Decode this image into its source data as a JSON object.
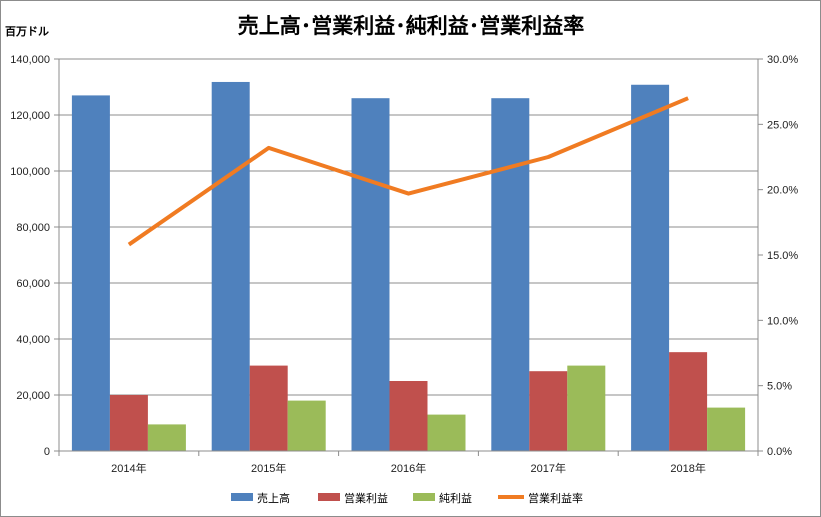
{
  "chart_data": {
    "type": "bar",
    "title": "売上高･営業利益･純利益･営業利益率",
    "ylabel": "百万ドル",
    "categories": [
      "2014年",
      "2015年",
      "2016年",
      "2017年",
      "2018年"
    ],
    "ylim": [
      0,
      140000
    ],
    "y_ticks": [
      "0",
      "20,000",
      "40,000",
      "60,000",
      "80,000",
      "100,000",
      "120,000",
      "140,000"
    ],
    "y2lim": [
      0,
      30
    ],
    "y2_ticks": [
      "0.0%",
      "5.0%",
      "10.0%",
      "15.0%",
      "20.0%",
      "25.0%",
      "30.0%"
    ],
    "series": [
      {
        "name": "売上高",
        "type": "bar",
        "axis": "left",
        "color": "#4f81bd",
        "values": [
          127000,
          131800,
          126000,
          126000,
          130800
        ]
      },
      {
        "name": "営業利益",
        "type": "bar",
        "axis": "left",
        "color": "#c0504d",
        "values": [
          20000,
          30500,
          25000,
          28500,
          35300
        ]
      },
      {
        "name": "純利益",
        "type": "bar",
        "axis": "left",
        "color": "#9bbb59",
        "values": [
          9500,
          18000,
          13000,
          30500,
          15500
        ]
      },
      {
        "name": "営業利益率",
        "type": "line",
        "axis": "right",
        "color": "#f07b22",
        "values": [
          15.8,
          23.2,
          19.7,
          22.5,
          27.0
        ]
      }
    ],
    "grid": true,
    "legend_position": "bottom"
  }
}
